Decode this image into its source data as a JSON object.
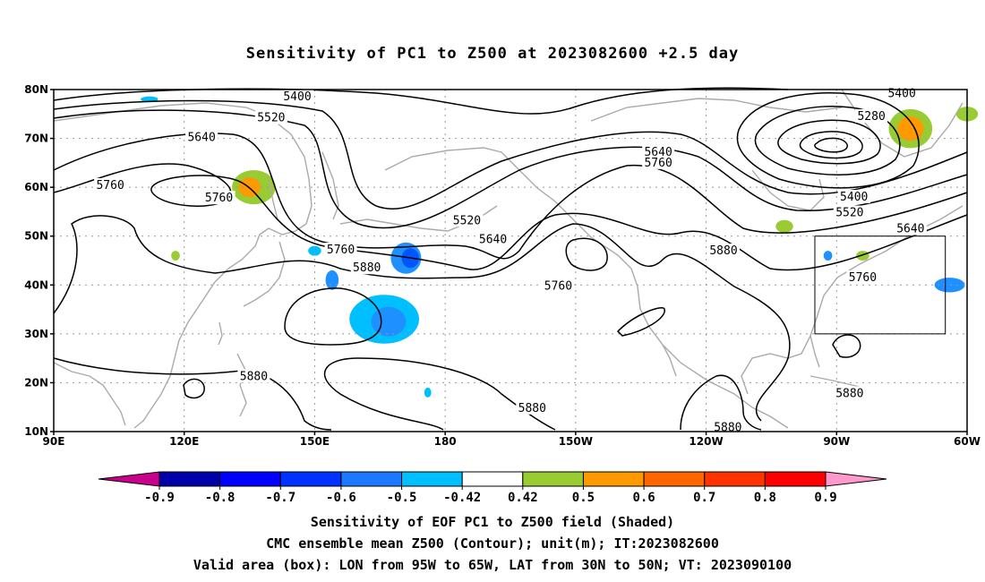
{
  "title": "Sensitivity of PC1 to Z500 at 2023082600 +2.5 day",
  "captions": [
    "Sensitivity of EOF PC1 to Z500 field (Shaded)",
    "CMC ensemble mean Z500 (Contour); unit(m); IT:2023082600",
    "Valid area (box): LON from 95W to 65W, LAT from 30N to 50N; VT: 2023090100"
  ],
  "map": {
    "lon_range": [
      90,
      300
    ],
    "lat_range": [
      10,
      80
    ],
    "lat_ticks": [
      {
        "lat": 80,
        "label": "80N"
      },
      {
        "lat": 70,
        "label": "70N"
      },
      {
        "lat": 60,
        "label": "60N"
      },
      {
        "lat": 50,
        "label": "50N"
      },
      {
        "lat": 40,
        "label": "40N"
      },
      {
        "lat": 30,
        "label": "30N"
      },
      {
        "lat": 20,
        "label": "20N"
      },
      {
        "lat": 10,
        "label": "10N"
      }
    ],
    "lon_ticks": [
      {
        "lon": 90,
        "label": "90E"
      },
      {
        "lon": 120,
        "label": "120E"
      },
      {
        "lon": 150,
        "label": "150E"
      },
      {
        "lon": 180,
        "label": "180"
      },
      {
        "lon": 210,
        "label": "150W"
      },
      {
        "lon": 240,
        "label": "120W"
      },
      {
        "lon": 270,
        "label": "90W"
      },
      {
        "lon": 300,
        "label": "60W"
      }
    ],
    "valid_box": {
      "lon": [
        265,
        295
      ],
      "lat": [
        30,
        50
      ]
    },
    "contour_labels": [
      {
        "text": "5400",
        "lon": 146,
        "lat": 78.5
      },
      {
        "text": "5520",
        "lon": 140,
        "lat": 74.2
      },
      {
        "text": "5640",
        "lon": 124,
        "lat": 70.2
      },
      {
        "text": "5760",
        "lon": 103,
        "lat": 60.4
      },
      {
        "text": "5760",
        "lon": 128,
        "lat": 57.8
      },
      {
        "text": "5520",
        "lon": 185,
        "lat": 53.2
      },
      {
        "text": "5760",
        "lon": 156,
        "lat": 47.2
      },
      {
        "text": "5880",
        "lon": 162,
        "lat": 43.5
      },
      {
        "text": "5640",
        "lon": 191,
        "lat": 49.3
      },
      {
        "text": "5640",
        "lon": 229,
        "lat": 67.2
      },
      {
        "text": "5760",
        "lon": 229,
        "lat": 65.0
      },
      {
        "text": "5880",
        "lon": 244,
        "lat": 47.0
      },
      {
        "text": "5760",
        "lon": 206,
        "lat": 39.8
      },
      {
        "text": "5880",
        "lon": 136,
        "lat": 21.3
      },
      {
        "text": "5880",
        "lon": 200,
        "lat": 14.8
      },
      {
        "text": "5880",
        "lon": 245,
        "lat": 10.8
      },
      {
        "text": "5880",
        "lon": 273,
        "lat": 17.8
      },
      {
        "text": "5400",
        "lon": 285,
        "lat": 79.2
      },
      {
        "text": "5280",
        "lon": 278,
        "lat": 74.5
      },
      {
        "text": "5400",
        "lon": 274,
        "lat": 58.0
      },
      {
        "text": "5520",
        "lon": 273,
        "lat": 54.8
      },
      {
        "text": "5640",
        "lon": 287,
        "lat": 51.5
      },
      {
        "text": "5760",
        "lon": 276,
        "lat": 41.5
      }
    ],
    "shading": [
      {
        "lon": 136,
        "lat": 60,
        "rx": 5,
        "ry": 3.5,
        "color": "#99cc33"
      },
      {
        "lon": 135,
        "lat": 60,
        "rx": 2.5,
        "ry": 2,
        "color": "#ff9900"
      },
      {
        "lon": 287,
        "lat": 72,
        "rx": 5,
        "ry": 4,
        "color": "#99cc33"
      },
      {
        "lon": 287,
        "lat": 72,
        "rx": 3,
        "ry": 2.5,
        "color": "#ff9900"
      },
      {
        "lon": 171,
        "lat": 45.5,
        "rx": 3.5,
        "ry": 3.2,
        "color": "#1e90ff"
      },
      {
        "lon": 172,
        "lat": 45.5,
        "rx": 2,
        "ry": 2,
        "color": "#0055ff"
      },
      {
        "lon": 166,
        "lat": 33,
        "rx": 8,
        "ry": 5,
        "color": "#00bfff"
      },
      {
        "lon": 167,
        "lat": 32.5,
        "rx": 4,
        "ry": 3,
        "color": "#1e90ff"
      },
      {
        "lon": 154,
        "lat": 41,
        "rx": 1.5,
        "ry": 2,
        "color": "#1e90ff"
      },
      {
        "lon": 296,
        "lat": 40,
        "rx": 3.5,
        "ry": 1.5,
        "color": "#1e90ff"
      },
      {
        "lon": 258,
        "lat": 52,
        "rx": 2,
        "ry": 1.3,
        "color": "#99cc33"
      },
      {
        "lon": 276,
        "lat": 46,
        "rx": 1.5,
        "ry": 1,
        "color": "#99cc33"
      },
      {
        "lon": 305,
        "lat": 75,
        "rx": 2.5,
        "ry": 1.5,
        "color": "#99cc33"
      },
      {
        "lon": 118,
        "lat": 46,
        "rx": 1,
        "ry": 1,
        "color": "#99cc33"
      },
      {
        "lon": 150,
        "lat": 47,
        "rx": 1.5,
        "ry": 1,
        "color": "#00bfff"
      },
      {
        "lon": 268,
        "lat": 46,
        "rx": 1,
        "ry": 1,
        "color": "#1e90ff"
      },
      {
        "lon": 112,
        "lat": 78,
        "rx": 2,
        "ry": 0.6,
        "color": "#00bfff"
      },
      {
        "lon": 176,
        "lat": 18,
        "rx": 0.8,
        "ry": 1,
        "color": "#00bfff"
      }
    ]
  },
  "colorbar": {
    "labels": [
      "-0.9",
      "-0.8",
      "-0.7",
      "-0.6",
      "-0.5",
      "-0.42",
      "0.42",
      "0.5",
      "0.6",
      "0.7",
      "0.8",
      "0.9"
    ],
    "colors": [
      "#0000aa",
      "#0000ff",
      "#0033ff",
      "#1e78ff",
      "#00bfff",
      "#ffffff",
      "#99cc33",
      "#ff9900",
      "#ff6600",
      "#ff3300",
      "#ff0000"
    ],
    "low_color": "#c8008c",
    "high_color": "#ff99cc"
  }
}
